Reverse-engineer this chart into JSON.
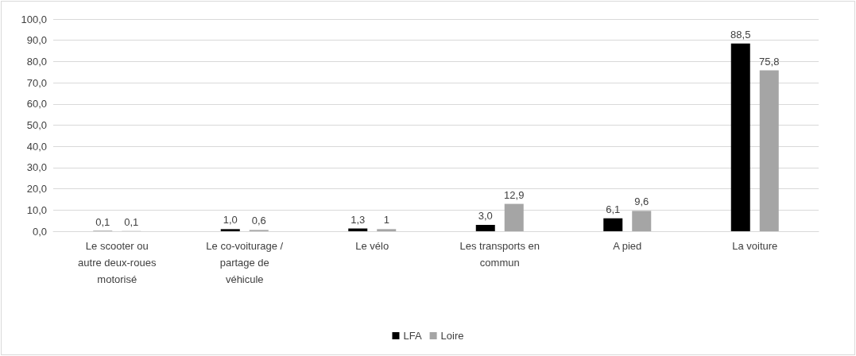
{
  "chart_data": {
    "type": "bar",
    "categories": [
      "Le scooter ou\nautre deux-roues\nmotorisé",
      "Le co-voiturage /\npartage de\nvéhicule",
      "Le vélo",
      "Les transports en\ncommun",
      "A pied",
      "La voiture"
    ],
    "series": [
      {
        "name": "LFA",
        "color": "#000000",
        "values": [
          0.1,
          1.0,
          1.3,
          3.0,
          6.1,
          88.5
        ],
        "value_labels": [
          "0,1",
          "1,0",
          "1,3",
          "3,0",
          "6,1",
          "88,5"
        ]
      },
      {
        "name": "Loire",
        "color": "#a5a5a5",
        "values": [
          0.1,
          0.6,
          1,
          12.9,
          9.6,
          75.8
        ],
        "value_labels": [
          "0,1",
          "0,6",
          "1",
          "12,9",
          "9,6",
          "75,8"
        ]
      }
    ],
    "ylim": [
      0,
      100
    ],
    "yticks": [
      {
        "value": 0,
        "label": "0,0"
      },
      {
        "value": 10,
        "label": "10,0"
      },
      {
        "value": 20,
        "label": "20,0"
      },
      {
        "value": 30,
        "label": "30,0"
      },
      {
        "value": 40,
        "label": "40,0"
      },
      {
        "value": 50,
        "label": "50,0"
      },
      {
        "value": 60,
        "label": "60,0"
      },
      {
        "value": 70,
        "label": "70,0"
      },
      {
        "value": 80,
        "label": "80,0"
      },
      {
        "value": 90,
        "label": "90,0"
      },
      {
        "value": 100,
        "label": "100,0"
      }
    ],
    "grid": "y",
    "legend": "bottom"
  }
}
